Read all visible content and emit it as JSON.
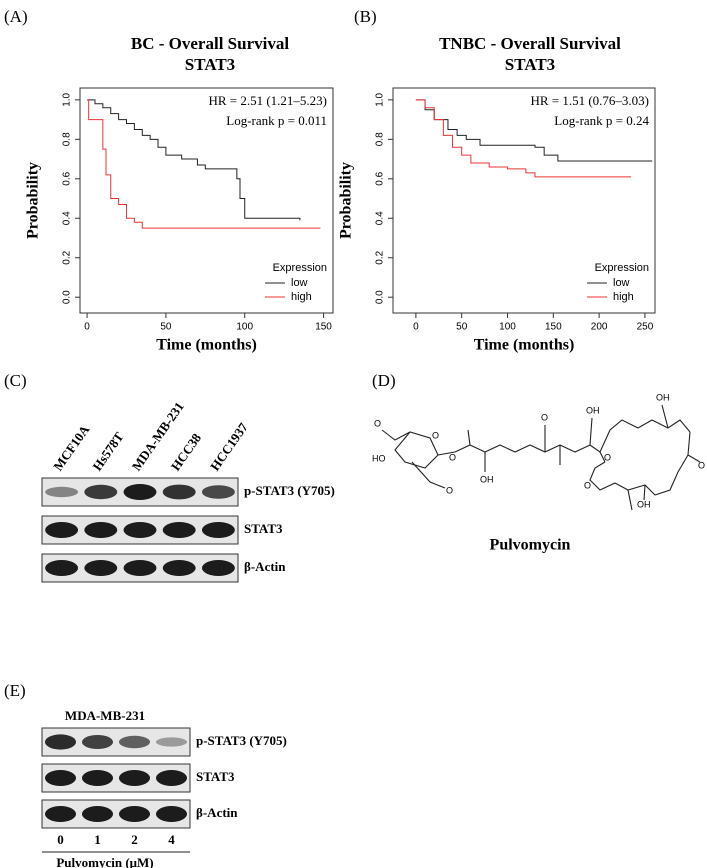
{
  "panels": [
    "(A)",
    "(B)",
    "(C)",
    "(D)",
    "(E)"
  ],
  "chart_data": [
    {
      "type": "step",
      "title": "BC - Overall Survival",
      "subtitle": "STAT3",
      "x_label": "Time (months)",
      "y_label": "Probability",
      "annotations": [
        "HR = 2.51 (1.21–5.23)",
        "Log-rank p = 0.011"
      ],
      "legend_title": "Expression",
      "legend": "bottom-right",
      "xlim": [
        -4.5,
        156
      ],
      "xticks": [
        0,
        50,
        100,
        150
      ],
      "ylim": [
        -0.08,
        1.06
      ],
      "yticks": [
        {
          "value": 0,
          "label": "0.0"
        },
        0.2,
        0.4,
        0.6,
        0.8,
        {
          "value": 1,
          "label": "1.0"
        }
      ],
      "series": [
        {
          "name": "low",
          "color": "#222222",
          "x": [
            0,
            5,
            10,
            15,
            20,
            25,
            30,
            35,
            40,
            45,
            50,
            60,
            70,
            75,
            95,
            97,
            100,
            135
          ],
          "values": [
            1,
            0.98,
            0.96,
            0.93,
            0.9,
            0.88,
            0.85,
            0.82,
            0.8,
            0.76,
            0.72,
            0.7,
            0.67,
            0.65,
            0.6,
            0.5,
            0.4,
            0.39
          ]
        },
        {
          "name": "high",
          "color": "#ee3333",
          "x": [
            0,
            1,
            8,
            10,
            12,
            15,
            20,
            25,
            30,
            35,
            148
          ],
          "values": [
            1,
            0.9,
            0.9,
            0.75,
            0.62,
            0.5,
            0.47,
            0.4,
            0.38,
            0.35,
            0.35
          ]
        }
      ]
    },
    {
      "type": "step",
      "title": "TNBC - Overall Survival",
      "subtitle": "STAT3",
      "x_label": "Time (months)",
      "y_label": "Probability",
      "annotations": [
        "HR = 1.51 (0.76–3.03)",
        "Log-rank p = 0.24"
      ],
      "legend_title": "Expression",
      "legend": "bottom-right",
      "xlim": [
        -25,
        261
      ],
      "xticks": [
        0,
        50,
        100,
        150,
        200,
        250
      ],
      "ylim": [
        -0.08,
        1.06
      ],
      "yticks": [
        {
          "value": 0,
          "label": "0.0"
        },
        0.2,
        0.4,
        0.6,
        0.8,
        {
          "value": 1,
          "label": "1.0"
        }
      ],
      "series": [
        {
          "name": "low",
          "color": "#222222",
          "x": [
            0,
            10,
            20,
            35,
            45,
            55,
            70,
            130,
            140,
            155,
            258
          ],
          "values": [
            1,
            0.95,
            0.9,
            0.85,
            0.82,
            0.8,
            0.77,
            0.76,
            0.72,
            0.69,
            0.69
          ]
        },
        {
          "name": "high",
          "color": "#ee3333",
          "x": [
            0,
            10,
            20,
            30,
            40,
            50,
            60,
            80,
            100,
            120,
            130,
            235
          ],
          "values": [
            1,
            0.96,
            0.9,
            0.82,
            0.76,
            0.72,
            0.68,
            0.66,
            0.65,
            0.63,
            0.61,
            0.61
          ]
        }
      ]
    }
  ],
  "blot_c": {
    "lanes": [
      "MCF10A",
      "Hs578T",
      "MDA-MB-231",
      "HCC38",
      "HCC1937"
    ],
    "rows": [
      "p-STAT3 (Y705)",
      "STAT3",
      "β-Actin"
    ]
  },
  "molecule": {
    "name": "Pulvomycin",
    "labels": [
      "O",
      "HO",
      "O",
      "O",
      "O",
      "OH",
      "O",
      "OH",
      "O",
      "O",
      "OH",
      "O",
      "OH"
    ]
  },
  "blot_e": {
    "cell_line": "MDA-MB-231",
    "doses": [
      0,
      1,
      2,
      4
    ],
    "dose_label": "Pulvomycin (μM)",
    "rows": [
      "p-STAT3 (Y705)",
      "STAT3",
      "β-Actin"
    ]
  }
}
